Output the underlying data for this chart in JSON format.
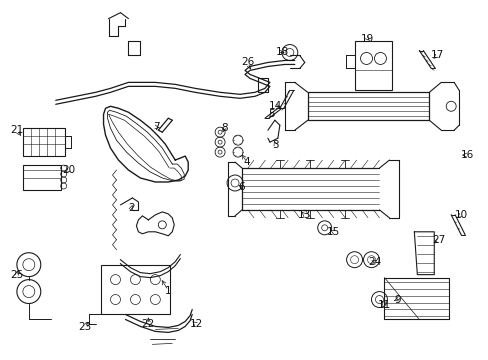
{
  "bg_color": "#ffffff",
  "line_color": "#1a1a1a",
  "text_color": "#111111",
  "fig_width": 4.89,
  "fig_height": 3.6,
  "dpi": 100,
  "label_fs": 7.5,
  "lw": 0.7
}
